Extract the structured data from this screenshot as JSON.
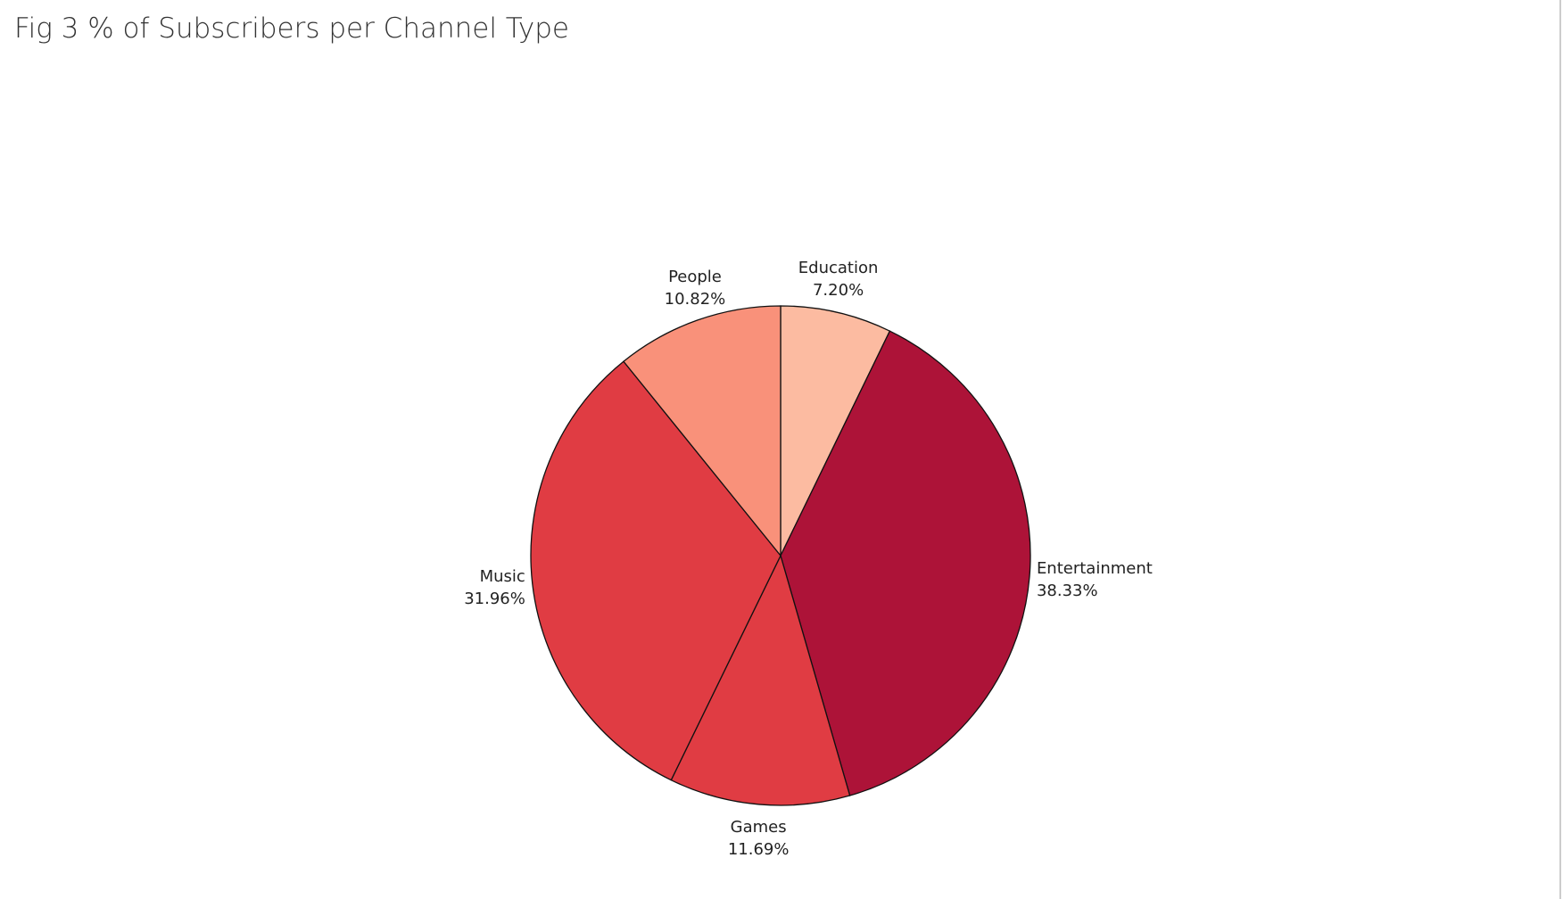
{
  "chart_data": {
    "type": "pie",
    "title": "Fig 3 % of Subscribers per Channel Type",
    "categories": [
      "Education",
      "Entertainment",
      "Games",
      "Music",
      "People"
    ],
    "values": [
      7.2,
      38.33,
      11.69,
      31.96,
      10.82
    ],
    "value_labels": [
      "7.20%",
      "38.33%",
      "11.69%",
      "31.96%",
      "10.82%"
    ],
    "colors": [
      "#fcbba1",
      "#ad1338",
      "#e03c43",
      "#e03c43",
      "#f9917a"
    ]
  }
}
